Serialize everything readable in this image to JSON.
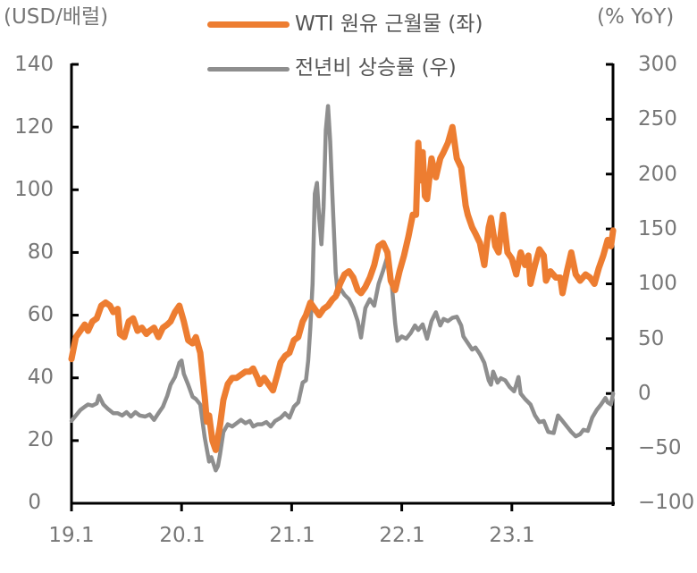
{
  "chart_data": {
    "type": "line",
    "title": "",
    "left_axis": {
      "label": "(USD/배럴)",
      "range": [
        0,
        140
      ],
      "ticks": [
        0,
        20,
        40,
        60,
        80,
        100,
        120,
        140
      ]
    },
    "right_axis": {
      "label": "(% YoY)",
      "range": [
        -100,
        300
      ],
      "ticks": [
        -100,
        -50,
        0,
        50,
        100,
        150,
        200,
        250,
        300
      ]
    },
    "x_axis": {
      "label": "",
      "ticks": [
        "19.1",
        "20.1",
        "21.1",
        "22.1",
        "23.1"
      ],
      "range_years": [
        2019.0,
        2023.92
      ]
    },
    "grid": false,
    "legend_position": "top-center",
    "series": [
      {
        "name": "WTI 원유 근월물 (좌)",
        "axis": "left",
        "color": "#ED7D31",
        "points": [
          [
            2019.0,
            46
          ],
          [
            2019.04,
            53
          ],
          [
            2019.08,
            55
          ],
          [
            2019.12,
            57
          ],
          [
            2019.15,
            55
          ],
          [
            2019.19,
            58
          ],
          [
            2019.23,
            59
          ],
          [
            2019.27,
            63
          ],
          [
            2019.31,
            64
          ],
          [
            2019.35,
            63
          ],
          [
            2019.38,
            61
          ],
          [
            2019.42,
            62
          ],
          [
            2019.44,
            54
          ],
          [
            2019.48,
            53
          ],
          [
            2019.52,
            58
          ],
          [
            2019.56,
            59
          ],
          [
            2019.6,
            55
          ],
          [
            2019.64,
            56
          ],
          [
            2019.68,
            54
          ],
          [
            2019.71,
            55
          ],
          [
            2019.75,
            56
          ],
          [
            2019.79,
            53
          ],
          [
            2019.83,
            56
          ],
          [
            2019.87,
            57
          ],
          [
            2019.9,
            58
          ],
          [
            2019.94,
            61
          ],
          [
            2019.98,
            63
          ],
          [
            2020.02,
            58
          ],
          [
            2020.06,
            52
          ],
          [
            2020.1,
            51
          ],
          [
            2020.13,
            53
          ],
          [
            2020.17,
            48
          ],
          [
            2020.21,
            34
          ],
          [
            2020.23,
            26
          ],
          [
            2020.25,
            28
          ],
          [
            2020.28,
            20
          ],
          [
            2020.31,
            17
          ],
          [
            2020.35,
            25
          ],
          [
            2020.38,
            33
          ],
          [
            2020.42,
            38
          ],
          [
            2020.46,
            40
          ],
          [
            2020.5,
            40
          ],
          [
            2020.54,
            41
          ],
          [
            2020.58,
            42
          ],
          [
            2020.62,
            42
          ],
          [
            2020.65,
            43
          ],
          [
            2020.69,
            40
          ],
          [
            2020.71,
            38
          ],
          [
            2020.75,
            40
          ],
          [
            2020.79,
            38
          ],
          [
            2020.83,
            36
          ],
          [
            2020.87,
            41
          ],
          [
            2020.9,
            45
          ],
          [
            2020.94,
            47
          ],
          [
            2020.98,
            48
          ],
          [
            2021.02,
            52
          ],
          [
            2021.06,
            53
          ],
          [
            2021.1,
            58
          ],
          [
            2021.13,
            60
          ],
          [
            2021.17,
            64
          ],
          [
            2021.21,
            62
          ],
          [
            2021.25,
            60
          ],
          [
            2021.29,
            62
          ],
          [
            2021.33,
            63
          ],
          [
            2021.37,
            65
          ],
          [
            2021.4,
            66
          ],
          [
            2021.44,
            70
          ],
          [
            2021.48,
            73
          ],
          [
            2021.52,
            74
          ],
          [
            2021.56,
            72
          ],
          [
            2021.6,
            68
          ],
          [
            2021.63,
            67
          ],
          [
            2021.67,
            69
          ],
          [
            2021.71,
            72
          ],
          [
            2021.75,
            76
          ],
          [
            2021.79,
            82
          ],
          [
            2021.83,
            83
          ],
          [
            2021.87,
            80
          ],
          [
            2021.9,
            71
          ],
          [
            2021.94,
            68
          ],
          [
            2021.98,
            74
          ],
          [
            2022.02,
            79
          ],
          [
            2022.06,
            85
          ],
          [
            2022.1,
            92
          ],
          [
            2022.13,
            92
          ],
          [
            2022.15,
            115
          ],
          [
            2022.17,
            103
          ],
          [
            2022.19,
            112
          ],
          [
            2022.21,
            98
          ],
          [
            2022.23,
            97
          ],
          [
            2022.27,
            110
          ],
          [
            2022.31,
            104
          ],
          [
            2022.35,
            110
          ],
          [
            2022.38,
            112
          ],
          [
            2022.42,
            115
          ],
          [
            2022.46,
            120
          ],
          [
            2022.5,
            110
          ],
          [
            2022.54,
            107
          ],
          [
            2022.58,
            95
          ],
          [
            2022.6,
            92
          ],
          [
            2022.64,
            88
          ],
          [
            2022.67,
            86
          ],
          [
            2022.71,
            83
          ],
          [
            2022.75,
            76
          ],
          [
            2022.79,
            88
          ],
          [
            2022.81,
            91
          ],
          [
            2022.85,
            82
          ],
          [
            2022.88,
            80
          ],
          [
            2022.92,
            92
          ],
          [
            2022.96,
            80
          ],
          [
            2023.0,
            78
          ],
          [
            2023.04,
            73
          ],
          [
            2023.08,
            80
          ],
          [
            2023.12,
            76
          ],
          [
            2023.15,
            79
          ],
          [
            2023.17,
            70
          ],
          [
            2023.21,
            76
          ],
          [
            2023.25,
            81
          ],
          [
            2023.29,
            79
          ],
          [
            2023.31,
            71
          ],
          [
            2023.35,
            74
          ],
          [
            2023.4,
            72
          ],
          [
            2023.44,
            72
          ],
          [
            2023.46,
            67
          ],
          [
            2023.5,
            74
          ],
          [
            2023.54,
            80
          ],
          [
            2023.58,
            73
          ],
          [
            2023.62,
            71
          ],
          [
            2023.67,
            73
          ],
          [
            2023.71,
            72
          ],
          [
            2023.75,
            70
          ],
          [
            2023.79,
            75
          ],
          [
            2023.83,
            79
          ],
          [
            2023.87,
            84
          ],
          [
            2023.9,
            82
          ],
          [
            2023.92,
            87
          ]
        ]
      },
      {
        "name": "전년비 상승률 (우)",
        "axis": "right",
        "color": "#8E8E8E",
        "points": [
          [
            2019.0,
            -25
          ],
          [
            2019.04,
            -20
          ],
          [
            2019.08,
            -15
          ],
          [
            2019.12,
            -12
          ],
          [
            2019.15,
            -10
          ],
          [
            2019.19,
            -11
          ],
          [
            2019.23,
            -9
          ],
          [
            2019.25,
            -2
          ],
          [
            2019.29,
            -10
          ],
          [
            2019.33,
            -14
          ],
          [
            2019.38,
            -18
          ],
          [
            2019.42,
            -18
          ],
          [
            2019.46,
            -20
          ],
          [
            2019.5,
            -17
          ],
          [
            2019.54,
            -21
          ],
          [
            2019.58,
            -17
          ],
          [
            2019.62,
            -20
          ],
          [
            2019.67,
            -21
          ],
          [
            2019.71,
            -19
          ],
          [
            2019.75,
            -24
          ],
          [
            2019.79,
            -18
          ],
          [
            2019.83,
            -12
          ],
          [
            2019.87,
            -2
          ],
          [
            2019.9,
            8
          ],
          [
            2019.94,
            15
          ],
          [
            2019.98,
            28
          ],
          [
            2020.0,
            30
          ],
          [
            2020.02,
            18
          ],
          [
            2020.06,
            8
          ],
          [
            2020.1,
            -3
          ],
          [
            2020.13,
            -5
          ],
          [
            2020.17,
            -10
          ],
          [
            2020.21,
            -40
          ],
          [
            2020.25,
            -62
          ],
          [
            2020.27,
            -58
          ],
          [
            2020.31,
            -70
          ],
          [
            2020.33,
            -66
          ],
          [
            2020.35,
            -55
          ],
          [
            2020.38,
            -35
          ],
          [
            2020.42,
            -28
          ],
          [
            2020.46,
            -30
          ],
          [
            2020.5,
            -27
          ],
          [
            2020.54,
            -24
          ],
          [
            2020.58,
            -27
          ],
          [
            2020.62,
            -25
          ],
          [
            2020.65,
            -30
          ],
          [
            2020.69,
            -28
          ],
          [
            2020.73,
            -28
          ],
          [
            2020.77,
            -26
          ],
          [
            2020.81,
            -30
          ],
          [
            2020.85,
            -25
          ],
          [
            2020.9,
            -22
          ],
          [
            2020.94,
            -18
          ],
          [
            2020.98,
            -22
          ],
          [
            2021.02,
            -12
          ],
          [
            2021.06,
            -8
          ],
          [
            2021.1,
            10
          ],
          [
            2021.13,
            12
          ],
          [
            2021.15,
            30
          ],
          [
            2021.17,
            60
          ],
          [
            2021.19,
            100
          ],
          [
            2021.21,
            182
          ],
          [
            2021.23,
            192
          ],
          [
            2021.25,
            160
          ],
          [
            2021.27,
            136
          ],
          [
            2021.29,
            170
          ],
          [
            2021.31,
            240
          ],
          [
            2021.33,
            262
          ],
          [
            2021.35,
            230
          ],
          [
            2021.37,
            180
          ],
          [
            2021.4,
            110
          ],
          [
            2021.42,
            90
          ],
          [
            2021.44,
            96
          ],
          [
            2021.48,
            90
          ],
          [
            2021.52,
            86
          ],
          [
            2021.56,
            78
          ],
          [
            2021.6,
            66
          ],
          [
            2021.63,
            51
          ],
          [
            2021.67,
            78
          ],
          [
            2021.71,
            86
          ],
          [
            2021.75,
            80
          ],
          [
            2021.79,
            100
          ],
          [
            2021.83,
            112
          ],
          [
            2021.87,
            125
          ],
          [
            2021.9,
            110
          ],
          [
            2021.94,
            64
          ],
          [
            2021.96,
            48
          ],
          [
            2022.0,
            52
          ],
          [
            2022.04,
            50
          ],
          [
            2022.08,
            55
          ],
          [
            2022.12,
            62
          ],
          [
            2022.15,
            58
          ],
          [
            2022.19,
            63
          ],
          [
            2022.23,
            50
          ],
          [
            2022.27,
            66
          ],
          [
            2022.29,
            70
          ],
          [
            2022.31,
            74
          ],
          [
            2022.35,
            62
          ],
          [
            2022.38,
            68
          ],
          [
            2022.42,
            66
          ],
          [
            2022.46,
            69
          ],
          [
            2022.5,
            70
          ],
          [
            2022.54,
            62
          ],
          [
            2022.56,
            52
          ],
          [
            2022.6,
            46
          ],
          [
            2022.64,
            40
          ],
          [
            2022.67,
            42
          ],
          [
            2022.71,
            36
          ],
          [
            2022.75,
            28
          ],
          [
            2022.79,
            12
          ],
          [
            2022.81,
            8
          ],
          [
            2022.83,
            20
          ],
          [
            2022.87,
            10
          ],
          [
            2022.9,
            14
          ],
          [
            2022.94,
            12
          ],
          [
            2022.98,
            6
          ],
          [
            2023.02,
            2
          ],
          [
            2023.04,
            8
          ],
          [
            2023.06,
            15
          ],
          [
            2023.08,
            0
          ],
          [
            2023.12,
            -5
          ],
          [
            2023.17,
            -10
          ],
          [
            2023.21,
            -20
          ],
          [
            2023.25,
            -26
          ],
          [
            2023.29,
            -25
          ],
          [
            2023.31,
            -30
          ],
          [
            2023.33,
            -35
          ],
          [
            2023.38,
            -36
          ],
          [
            2023.42,
            -20
          ],
          [
            2023.46,
            -25
          ],
          [
            2023.5,
            -30
          ],
          [
            2023.54,
            -35
          ],
          [
            2023.58,
            -39
          ],
          [
            2023.62,
            -37
          ],
          [
            2023.65,
            -33
          ],
          [
            2023.69,
            -34
          ],
          [
            2023.73,
            -22
          ],
          [
            2023.77,
            -15
          ],
          [
            2023.81,
            -10
          ],
          [
            2023.85,
            -4
          ],
          [
            2023.87,
            -8
          ],
          [
            2023.9,
            -10
          ],
          [
            2023.92,
            0
          ]
        ]
      }
    ]
  },
  "legend": {
    "items": [
      {
        "label": "WTI 원유 근월물 (좌)",
        "color": "#ED7D31"
      },
      {
        "label": "전년비 상승률 (우)",
        "color": "#8E8E8E"
      }
    ]
  },
  "axes": {
    "left_title": "(USD/배럴)",
    "right_title": "(% YoY)",
    "left_ticks": [
      "140",
      "120",
      "100",
      "80",
      "60",
      "40",
      "20",
      "0"
    ],
    "right_ticks": [
      "300",
      "250",
      "200",
      "150",
      "100",
      "50",
      "0",
      "−50",
      "−100"
    ],
    "x_ticks": [
      "19.1",
      "20.1",
      "21.1",
      "22.1",
      "23.1"
    ]
  }
}
